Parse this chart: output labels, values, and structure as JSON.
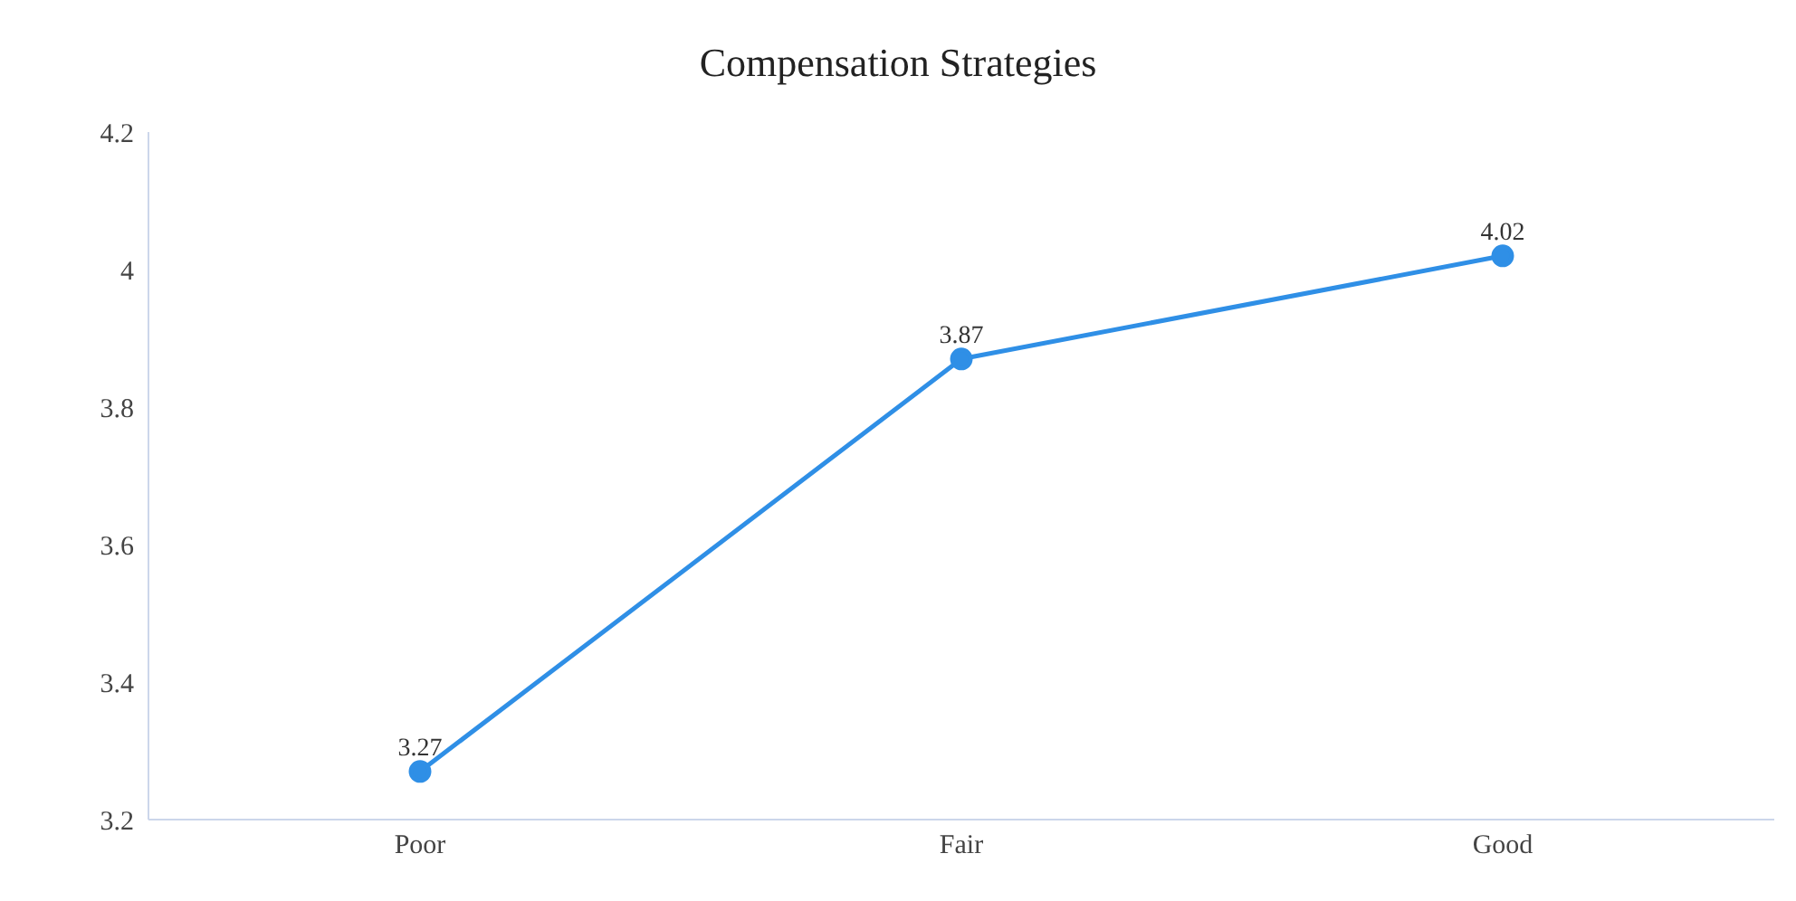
{
  "chart_data": {
    "type": "line",
    "title": "Compensation Strategies",
    "categories": [
      "Poor",
      "Fair",
      "Good"
    ],
    "series": [
      {
        "color": "#2f8fe6",
        "values": [
          3.27,
          3.87,
          4.02
        ]
      }
    ],
    "ylim": [
      3.2,
      4.2
    ],
    "yticks": [
      3.2,
      3.4,
      3.6,
      3.8,
      4,
      4.2
    ],
    "grid": false,
    "legend": false,
    "marker": "circle",
    "line_style": "solid",
    "data_labels": true
  }
}
